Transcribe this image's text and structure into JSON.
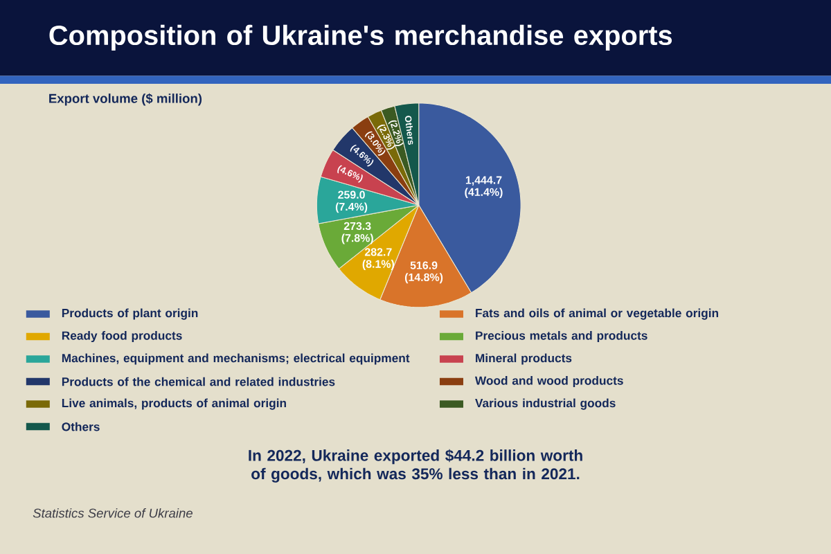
{
  "chart_data": {
    "type": "pie",
    "title": "Composition of Ukraine's merchandise exports",
    "subtitle": "Export volume ($ million)",
    "categories": [
      "Products of plant origin",
      "Fats and oils of animal or vegetable origin",
      "Ready food products",
      "Precious metals and products",
      "Machines, equipment and mechanisms; electrical equipment",
      "Mineral products",
      "Products of the chemical and related industries",
      "Wood and wood products",
      "Live animals, products of animal origin",
      "Various industrial goods",
      "Others"
    ],
    "values": [
      41.4,
      14.8,
      8.1,
      7.8,
      7.4,
      4.6,
      4.6,
      3.0,
      2.3,
      2.2,
      3.8
    ],
    "value_labels": [
      "1,444.7 (41.4%)",
      "516.9 (14.8%)",
      "282.7 (8.1%)",
      "273.3 (7.8%)",
      "259.0 (7.4%)",
      "(4.6%)",
      "(4.6%)",
      "(3.0%)",
      "(2.3%)",
      "(2.2%)",
      "Others"
    ],
    "colors": [
      "#3a5a9e",
      "#d9742a",
      "#e0a800",
      "#6aaa38",
      "#2aa69a",
      "#c8424f",
      "#22376a",
      "#8a3e10",
      "#7a6a08",
      "#3b5a22",
      "#14584c"
    ],
    "legend": "bottom",
    "annotations": [
      "In 2022, Ukraine exported **$44.2 billion** worth of goods, which was 35% less than in 2021.",
      "Statistics Service of Ukraine"
    ]
  }
}
